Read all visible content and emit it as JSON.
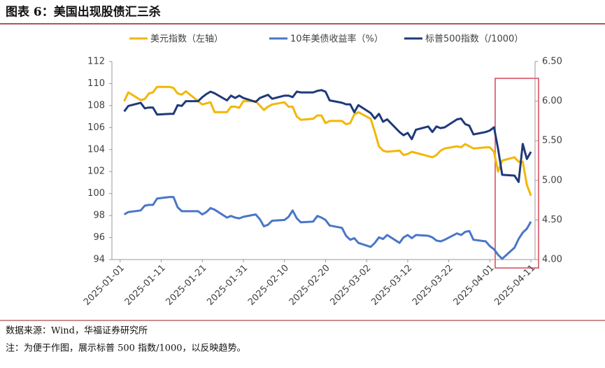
{
  "chart_data": {
    "type": "line",
    "title": "图表 6：美国出现股债汇三杀",
    "source": "数据来源：Wind，华福证券研究所",
    "note": "注：为便于作图，展示标普 500 指数/1000，以反映趋势。",
    "x": [
      "2025-01-02",
      "2025-01-03",
      "2025-01-06",
      "2025-01-07",
      "2025-01-08",
      "2025-01-09",
      "2025-01-10",
      "2025-01-13",
      "2025-01-14",
      "2025-01-15",
      "2025-01-16",
      "2025-01-17",
      "2025-01-20",
      "2025-01-21",
      "2025-01-22",
      "2025-01-23",
      "2025-01-24",
      "2025-01-27",
      "2025-01-28",
      "2025-01-29",
      "2025-01-30",
      "2025-01-31",
      "2025-02-03",
      "2025-02-04",
      "2025-02-05",
      "2025-02-06",
      "2025-02-07",
      "2025-02-10",
      "2025-02-11",
      "2025-02-12",
      "2025-02-13",
      "2025-02-14",
      "2025-02-17",
      "2025-02-18",
      "2025-02-19",
      "2025-02-20",
      "2025-02-21",
      "2025-02-24",
      "2025-02-25",
      "2025-02-26",
      "2025-02-27",
      "2025-02-28",
      "2025-03-03",
      "2025-03-04",
      "2025-03-05",
      "2025-03-06",
      "2025-03-07",
      "2025-03-10",
      "2025-03-11",
      "2025-03-12",
      "2025-03-13",
      "2025-03-14",
      "2025-03-17",
      "2025-03-18",
      "2025-03-19",
      "2025-03-20",
      "2025-03-21",
      "2025-03-24",
      "2025-03-25",
      "2025-03-26",
      "2025-03-27",
      "2025-03-28",
      "2025-03-31",
      "2025-04-01",
      "2025-04-02",
      "2025-04-03",
      "2025-04-04",
      "2025-04-07",
      "2025-04-08",
      "2025-04-09",
      "2025-04-10",
      "2025-04-11"
    ],
    "series": [
      {
        "name": "美元指数（左轴）",
        "color": "#f2b705",
        "axis": "y",
        "values": [
          108.4,
          109.2,
          108.5,
          108.6,
          109.1,
          109.2,
          109.7,
          109.7,
          109.6,
          109.1,
          109.0,
          109.3,
          108.4,
          108.1,
          108.2,
          108.3,
          107.4,
          107.4,
          107.9,
          107.9,
          107.8,
          108.4,
          108.4,
          108.0,
          107.6,
          107.9,
          108.1,
          108.3,
          107.9,
          107.9,
          107.0,
          106.7,
          106.8,
          107.1,
          107.1,
          106.4,
          106.6,
          106.6,
          106.3,
          106.4,
          107.2,
          107.4,
          106.8,
          105.6,
          104.3,
          103.9,
          103.8,
          103.9,
          103.5,
          103.6,
          103.8,
          103.7,
          103.4,
          103.3,
          103.5,
          103.9,
          104.1,
          104.3,
          104.2,
          104.5,
          104.3,
          104.1,
          104.2,
          104.2,
          103.8,
          102.0,
          103.0,
          103.3,
          102.9,
          102.9,
          100.8,
          99.8
        ]
      },
      {
        "name": "10年美债收益率（%）",
        "color": "#4a76c8",
        "axis": "y2",
        "values": [
          4.57,
          4.6,
          4.62,
          4.68,
          4.69,
          4.69,
          4.77,
          4.79,
          4.79,
          4.66,
          4.61,
          4.61,
          4.61,
          4.57,
          4.6,
          4.65,
          4.63,
          4.53,
          4.55,
          4.53,
          4.52,
          4.54,
          4.57,
          4.51,
          4.42,
          4.44,
          4.49,
          4.5,
          4.54,
          4.62,
          4.52,
          4.47,
          4.48,
          4.55,
          4.53,
          4.5,
          4.43,
          4.4,
          4.3,
          4.25,
          4.27,
          4.21,
          4.16,
          4.21,
          4.28,
          4.26,
          4.31,
          4.21,
          4.28,
          4.31,
          4.27,
          4.31,
          4.3,
          4.28,
          4.24,
          4.23,
          4.25,
          4.33,
          4.31,
          4.35,
          4.36,
          4.25,
          4.23,
          4.17,
          4.13,
          4.06,
          4.01,
          4.15,
          4.26,
          4.34,
          4.39,
          4.48
        ]
      },
      {
        "name": "标普500指数（/1000）",
        "color": "#1f3a7a",
        "axis": "y2",
        "values": [
          5.87,
          5.94,
          5.98,
          5.91,
          5.92,
          5.92,
          5.83,
          5.84,
          5.84,
          5.95,
          5.94,
          6.0,
          6.0,
          6.05,
          6.09,
          6.12,
          6.1,
          6.01,
          6.07,
          6.04,
          6.07,
          6.04,
          5.99,
          6.04,
          6.06,
          6.08,
          6.03,
          6.07,
          6.07,
          6.05,
          6.12,
          6.11,
          6.11,
          6.13,
          6.14,
          6.12,
          6.01,
          5.98,
          5.96,
          5.96,
          5.86,
          5.95,
          5.85,
          5.78,
          5.84,
          5.74,
          5.77,
          5.61,
          5.57,
          5.6,
          5.52,
          5.64,
          5.68,
          5.61,
          5.68,
          5.66,
          5.67,
          5.77,
          5.78,
          5.71,
          5.69,
          5.58,
          5.61,
          5.63,
          5.67,
          5.4,
          5.07,
          5.06,
          4.98,
          5.46,
          5.27,
          5.36
        ]
      }
    ],
    "xlim": [
      "2024-12-30",
      "2025-04-12"
    ],
    "xticks": [
      "2025-01-01",
      "2025-01-11",
      "2025-01-21",
      "2025-01-31",
      "2025-02-10",
      "2025-02-20",
      "2025-03-02",
      "2025-03-12",
      "2025-03-22",
      "2025-04-01",
      "2025-04-11"
    ],
    "ylim": [
      94,
      112
    ],
    "yticks": [
      94,
      96,
      98,
      100,
      102,
      104,
      106,
      108,
      110,
      112
    ],
    "y2lim": [
      4,
      6.5
    ],
    "y2ticks": [
      {
        "value": 4,
        "label": "4.00"
      },
      {
        "value": 4.5,
        "label": "4.50"
      },
      {
        "value": 5,
        "label": "5.00"
      },
      {
        "value": 5.5,
        "label": "5.50"
      },
      {
        "value": 6,
        "label": "6.00"
      },
      {
        "value": 6.5,
        "label": "6.50"
      }
    ],
    "grid": false,
    "legend": "top"
  }
}
